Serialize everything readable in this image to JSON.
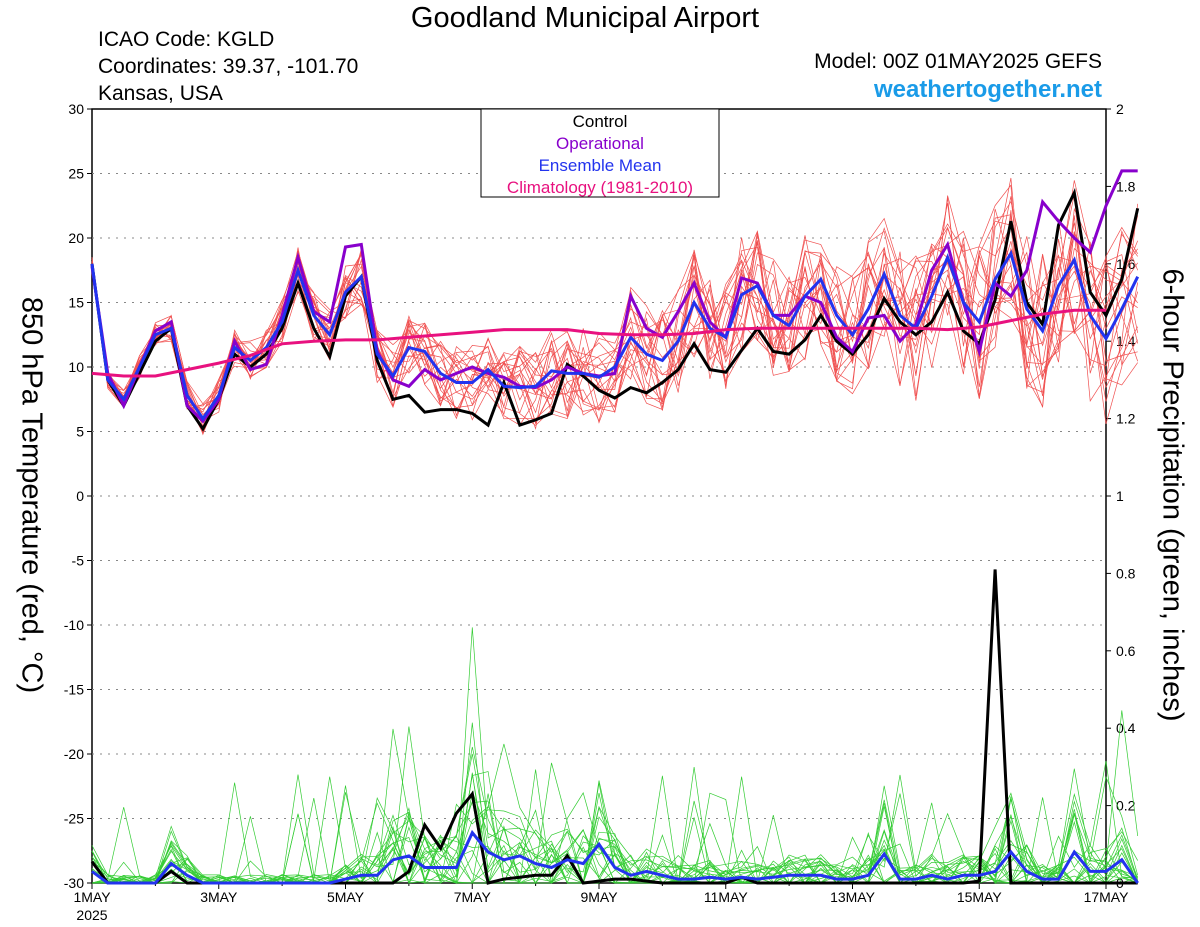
{
  "header": {
    "title": "Goodland Municipal Airport",
    "icao": "ICAO Code: KGLD",
    "coords": "Coordinates: 39.37, -101.70",
    "location": "Kansas, USA",
    "model": "Model: 00Z 01MAY2025 GEFS",
    "site": "weathertogether.net"
  },
  "chart_data": {
    "type": "line",
    "x_unit": "days since 00Z 01MAY2025 (6-hour steps)",
    "xlim": [
      0,
      16
    ],
    "x_tick_labels": [
      "1MAY",
      "3MAY",
      "5MAY",
      "7MAY",
      "9MAY",
      "11MAY",
      "13MAY",
      "15MAY",
      "17MAY"
    ],
    "x_tick_values": [
      0,
      2,
      4,
      6,
      8,
      10,
      12,
      14,
      16
    ],
    "year_label": "2025",
    "y_left": {
      "label": "850 hPa Temperature (red, °C)",
      "ylim": [
        -30,
        30
      ],
      "ticks": [
        "30",
        "25",
        "20",
        "15",
        "10",
        "5",
        "0",
        "-5",
        "-10",
        "-15",
        "-20",
        "-25",
        "-30"
      ]
    },
    "y_right": {
      "label": "6-hour Precipitation (green, inches)",
      "ylim": [
        0,
        2
      ],
      "ticks": [
        "2",
        "1.8",
        "1.6",
        "1.4",
        "1.2",
        "1",
        "0.8",
        "0.6",
        "0.4",
        "0.2",
        "0"
      ]
    },
    "legend": {
      "position": "top-center",
      "entries": [
        {
          "label": "Control",
          "color": "#000000"
        },
        {
          "label": "Operational",
          "color": "#8800cc"
        },
        {
          "label": "Ensemble Mean",
          "color": "#2233ee"
        },
        {
          "label": "Climatology (1981-2010)",
          "color": "#e8117f"
        }
      ]
    },
    "colors": {
      "member_temp": "#f05050",
      "member_precip": "#33cc33",
      "control": "#000000",
      "operational": "#8800cc",
      "mean": "#2233ee",
      "climatology": "#e8117f"
    },
    "temperature_series": [
      {
        "name": "Control",
        "x_start": 0,
        "x_step": 0.25,
        "values": [
          18,
          9,
          7,
          9.5,
          12,
          13,
          7,
          5.2,
          7.5,
          11,
          10,
          11,
          13,
          16.5,
          13,
          10.8,
          15.5,
          17,
          10.5,
          7.5,
          7.8,
          6.5,
          6.7,
          6.7,
          6.4,
          5.5,
          8.8,
          5.5,
          5.9,
          6.4,
          10.2,
          9.3,
          8.2,
          7.6,
          8.4,
          8,
          8.8,
          9.8,
          11.8,
          9.8,
          9.6,
          11.3,
          13,
          11.2,
          11,
          12.1,
          14,
          12,
          11,
          12.5,
          15.3,
          13.5,
          12.5,
          13.5,
          15.8,
          12.8,
          11.8,
          15.2,
          21.3,
          15,
          13.3,
          21,
          23.5,
          15.8,
          14,
          16.8,
          22.3
        ]
      },
      {
        "name": "Operational",
        "x_start": 0,
        "x_step": 0.25,
        "values": [
          17.8,
          9.5,
          7,
          10,
          12.8,
          13.5,
          7,
          5.8,
          7.5,
          12,
          9.8,
          10.2,
          14,
          18.5,
          14.3,
          13.5,
          19.3,
          19.5,
          11.2,
          9,
          8.5,
          9.8,
          9,
          9.5,
          10,
          9.5,
          9.2,
          8.5,
          8.4,
          9,
          10,
          9.5,
          9.3,
          9.5,
          15.5,
          13,
          12.3,
          14.3,
          16.5,
          13.5,
          12.3,
          16.9,
          16.5,
          14,
          14,
          15.5,
          15,
          12.3,
          11.2,
          13.8,
          14,
          12,
          13.3,
          17.5,
          19.5,
          15,
          11.2,
          16.5,
          15.5,
          17.5,
          22.8,
          21.3,
          20,
          18.9,
          22.5,
          25.2,
          25.2
        ]
      },
      {
        "name": "Ensemble Mean",
        "x_start": 0,
        "x_step": 0.25,
        "values": [
          18,
          9,
          7.5,
          10,
          12.5,
          13,
          7.8,
          6,
          7.8,
          11.5,
          10.5,
          11.5,
          13.5,
          17.5,
          14,
          12.5,
          15.8,
          17,
          11,
          9.3,
          11.5,
          11.2,
          9.5,
          8.8,
          8.8,
          9.8,
          8.5,
          8.4,
          8.5,
          9.7,
          9.5,
          9.5,
          9.2,
          10,
          12.3,
          11,
          10.5,
          12,
          15,
          13,
          12.3,
          15.6,
          16.3,
          14,
          13.2,
          15.5,
          16.8,
          14,
          12.5,
          14.5,
          17.2,
          14,
          13,
          15.5,
          18.5,
          15,
          13.5,
          16.8,
          18.8,
          14.5,
          12.8,
          16.3,
          18.3,
          14,
          12.2,
          14.5,
          17
        ]
      },
      {
        "name": "Climatology (1981-2010)",
        "x_start": 0,
        "x_step": 0.5,
        "values": [
          9.5,
          9.3,
          9.3,
          9.8,
          10.3,
          10.9,
          11.8,
          12,
          12.1,
          12.1,
          12.3,
          12.5,
          12.7,
          12.9,
          12.9,
          12.9,
          12.6,
          12.5,
          12.5,
          12.6,
          12.9,
          13,
          13,
          13,
          13,
          13,
          13,
          12.9,
          13.1,
          13.6,
          14.1,
          14.4,
          14.4
        ]
      }
    ],
    "precipitation_series": [
      {
        "name": "Control",
        "x_start": 0,
        "x_step": 0.25,
        "values": [
          0.055,
          0,
          0,
          0,
          0,
          0.03,
          0,
          0,
          0,
          0,
          0,
          0,
          0,
          0,
          0,
          0,
          0,
          0,
          0,
          0,
          0.03,
          0.15,
          0.09,
          0.18,
          0.23,
          0,
          0.01,
          0.015,
          0.02,
          0.02,
          0.07,
          0,
          0.005,
          0.01,
          0.01,
          0.005,
          0,
          0,
          0,
          0,
          0,
          0.015,
          0,
          0,
          0,
          0,
          0,
          0,
          0,
          0,
          0,
          0,
          0,
          0,
          0,
          0,
          0.005,
          0.81,
          0,
          0,
          0,
          0,
          0,
          0,
          0,
          0,
          0
        ]
      },
      {
        "name": "Ensemble Mean",
        "x_start": 0,
        "x_step": 0.25,
        "values": [
          0.03,
          0,
          0,
          0,
          0,
          0.05,
          0.02,
          0,
          0,
          0,
          0,
          0,
          0,
          0,
          0,
          0,
          0.01,
          0.02,
          0.02,
          0.06,
          0.07,
          0.04,
          0.04,
          0.04,
          0.13,
          0.08,
          0.06,
          0.07,
          0.05,
          0.04,
          0.06,
          0.05,
          0.1,
          0.04,
          0.02,
          0.03,
          0.02,
          0.01,
          0.01,
          0.015,
          0.01,
          0.015,
          0.01,
          0.015,
          0.02,
          0.02,
          0.02,
          0.01,
          0.01,
          0.02,
          0.075,
          0.01,
          0.01,
          0.02,
          0.01,
          0.02,
          0.02,
          0.03,
          0.08,
          0.03,
          0.01,
          0.01,
          0.08,
          0.03,
          0.03,
          0.06,
          0
        ]
      }
    ]
  }
}
